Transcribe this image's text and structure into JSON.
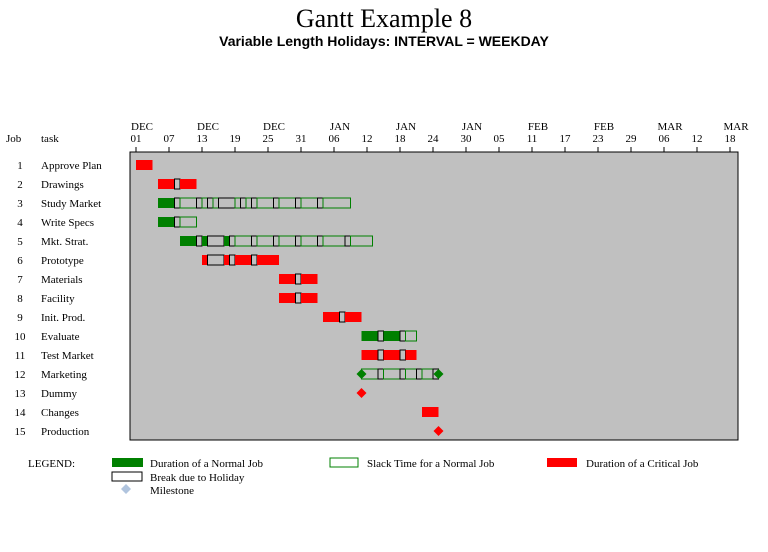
{
  "chart_data": {
    "type": "gantt",
    "title": "Gantt Example 8",
    "subtitle": "Variable Length Holidays: INTERVAL = WEEKDAY",
    "column_headers": {
      "job": "Job",
      "task": "task"
    },
    "axis": {
      "start": "2003-12-01",
      "end": "2004-03-19",
      "ticks": [
        {
          "month": "DEC",
          "day": "01",
          "date": "2003-12-01"
        },
        {
          "month": "",
          "day": "07",
          "date": "2003-12-07"
        },
        {
          "month": "DEC",
          "day": "13",
          "date": "2003-12-13"
        },
        {
          "month": "",
          "day": "19",
          "date": "2003-12-19"
        },
        {
          "month": "DEC",
          "day": "25",
          "date": "2003-12-25"
        },
        {
          "month": "",
          "day": "31",
          "date": "2003-12-31"
        },
        {
          "month": "JAN",
          "day": "06",
          "date": "2004-01-06"
        },
        {
          "month": "",
          "day": "12",
          "date": "2004-01-12"
        },
        {
          "month": "JAN",
          "day": "18",
          "date": "2004-01-18"
        },
        {
          "month": "",
          "day": "24",
          "date": "2004-01-24"
        },
        {
          "month": "JAN",
          "day": "30",
          "date": "2004-01-30"
        },
        {
          "month": "",
          "day": "05",
          "date": "2004-02-05"
        },
        {
          "month": "FEB",
          "day": "11",
          "date": "2004-02-11"
        },
        {
          "month": "",
          "day": "17",
          "date": "2004-02-17"
        },
        {
          "month": "FEB",
          "day": "23",
          "date": "2004-02-23"
        },
        {
          "month": "",
          "day": "29",
          "date": "2004-02-29"
        },
        {
          "month": "MAR",
          "day": "06",
          "date": "2004-03-06"
        },
        {
          "month": "",
          "day": "12",
          "date": "2004-03-12"
        },
        {
          "month": "MAR",
          "day": "18",
          "date": "2004-03-18"
        }
      ]
    },
    "jobs": [
      {
        "job": "1",
        "task": "Approve Plan",
        "segments": [
          {
            "type": "critical",
            "start": "2003-12-01",
            "end": "2003-12-04"
          }
        ]
      },
      {
        "job": "2",
        "task": "Drawings",
        "segments": [
          {
            "type": "critical",
            "start": "2003-12-05",
            "end": "2003-12-08"
          },
          {
            "type": "holiday",
            "start": "2003-12-08",
            "end": "2003-12-09"
          },
          {
            "type": "critical",
            "start": "2003-12-09",
            "end": "2003-12-12"
          }
        ]
      },
      {
        "job": "3",
        "task": "Study Market",
        "segments": [
          {
            "type": "normal",
            "start": "2003-12-05",
            "end": "2003-12-08"
          },
          {
            "type": "holiday",
            "start": "2003-12-08",
            "end": "2003-12-09"
          },
          {
            "type": "slack",
            "start": "2003-12-09",
            "end": "2003-12-12"
          },
          {
            "type": "holiday",
            "start": "2003-12-12",
            "end": "2003-12-13"
          },
          {
            "type": "slack",
            "start": "2003-12-13",
            "end": "2003-12-14"
          },
          {
            "type": "holiday",
            "start": "2003-12-14",
            "end": "2003-12-15"
          },
          {
            "type": "slack",
            "start": "2003-12-15",
            "end": "2003-12-16"
          },
          {
            "type": "holiday",
            "start": "2003-12-16",
            "end": "2003-12-19"
          },
          {
            "type": "slack",
            "start": "2003-12-19",
            "end": "2003-12-20"
          },
          {
            "type": "holiday",
            "start": "2003-12-20",
            "end": "2003-12-21"
          },
          {
            "type": "slack",
            "start": "2003-12-21",
            "end": "2003-12-22"
          },
          {
            "type": "holiday",
            "start": "2003-12-22",
            "end": "2003-12-23"
          },
          {
            "type": "slack",
            "start": "2003-12-23",
            "end": "2003-12-26"
          },
          {
            "type": "holiday",
            "start": "2003-12-26",
            "end": "2003-12-27"
          },
          {
            "type": "slack",
            "start": "2003-12-27",
            "end": "2003-12-30"
          },
          {
            "type": "holiday",
            "start": "2003-12-30",
            "end": "2003-12-31"
          },
          {
            "type": "slack",
            "start": "2003-12-31",
            "end": "2004-01-03"
          },
          {
            "type": "holiday",
            "start": "2004-01-03",
            "end": "2004-01-04"
          },
          {
            "type": "slack",
            "start": "2004-01-04",
            "end": "2004-01-09"
          }
        ]
      },
      {
        "job": "4",
        "task": "Write Specs",
        "segments": [
          {
            "type": "normal",
            "start": "2003-12-05",
            "end": "2003-12-08"
          },
          {
            "type": "holiday",
            "start": "2003-12-08",
            "end": "2003-12-09"
          },
          {
            "type": "slack",
            "start": "2003-12-09",
            "end": "2003-12-12"
          }
        ]
      },
      {
        "job": "5",
        "task": "Mkt. Strat.",
        "segments": [
          {
            "type": "normal",
            "start": "2003-12-09",
            "end": "2003-12-12"
          },
          {
            "type": "holiday",
            "start": "2003-12-12",
            "end": "2003-12-13"
          },
          {
            "type": "normal",
            "start": "2003-12-13",
            "end": "2003-12-14"
          },
          {
            "type": "holiday",
            "start": "2003-12-14",
            "end": "2003-12-17"
          },
          {
            "type": "normal",
            "start": "2003-12-17",
            "end": "2003-12-18"
          },
          {
            "type": "holiday",
            "start": "2003-12-18",
            "end": "2003-12-19"
          },
          {
            "type": "slack",
            "start": "2003-12-19",
            "end": "2003-12-22"
          },
          {
            "type": "holiday",
            "start": "2003-12-22",
            "end": "2003-12-23"
          },
          {
            "type": "slack",
            "start": "2003-12-23",
            "end": "2003-12-26"
          },
          {
            "type": "holiday",
            "start": "2003-12-26",
            "end": "2003-12-27"
          },
          {
            "type": "slack",
            "start": "2003-12-27",
            "end": "2003-12-30"
          },
          {
            "type": "holiday",
            "start": "2003-12-30",
            "end": "2003-12-31"
          },
          {
            "type": "slack",
            "start": "2003-12-31",
            "end": "2004-01-03"
          },
          {
            "type": "holiday",
            "start": "2004-01-03",
            "end": "2004-01-04"
          },
          {
            "type": "slack",
            "start": "2004-01-04",
            "end": "2004-01-08"
          },
          {
            "type": "holiday",
            "start": "2004-01-08",
            "end": "2004-01-09"
          },
          {
            "type": "slack",
            "start": "2004-01-09",
            "end": "2004-01-13"
          }
        ]
      },
      {
        "job": "6",
        "task": "Prototype",
        "segments": [
          {
            "type": "critical",
            "start": "2003-12-13",
            "end": "2003-12-14"
          },
          {
            "type": "holiday",
            "start": "2003-12-14",
            "end": "2003-12-17"
          },
          {
            "type": "critical",
            "start": "2003-12-17",
            "end": "2003-12-18"
          },
          {
            "type": "holiday",
            "start": "2003-12-18",
            "end": "2003-12-19"
          },
          {
            "type": "critical",
            "start": "2003-12-19",
            "end": "2003-12-22"
          },
          {
            "type": "holiday",
            "start": "2003-12-22",
            "end": "2003-12-23"
          },
          {
            "type": "critical",
            "start": "2003-12-23",
            "end": "2003-12-27"
          }
        ]
      },
      {
        "job": "7",
        "task": "Materials",
        "segments": [
          {
            "type": "critical",
            "start": "2003-12-27",
            "end": "2003-12-30"
          },
          {
            "type": "holiday",
            "start": "2003-12-30",
            "end": "2003-12-31"
          },
          {
            "type": "critical",
            "start": "2003-12-31",
            "end": "2004-01-03"
          }
        ]
      },
      {
        "job": "8",
        "task": "Facility",
        "segments": [
          {
            "type": "critical",
            "start": "2003-12-27",
            "end": "2003-12-30"
          },
          {
            "type": "holiday",
            "start": "2003-12-30",
            "end": "2003-12-31"
          },
          {
            "type": "critical",
            "start": "2003-12-31",
            "end": "2004-01-03"
          }
        ]
      },
      {
        "job": "9",
        "task": "Init. Prod.",
        "segments": [
          {
            "type": "critical",
            "start": "2004-01-04",
            "end": "2004-01-07"
          },
          {
            "type": "holiday",
            "start": "2004-01-07",
            "end": "2004-01-08"
          },
          {
            "type": "critical",
            "start": "2004-01-08",
            "end": "2004-01-11"
          }
        ]
      },
      {
        "job": "10",
        "task": "Evaluate",
        "segments": [
          {
            "type": "normal",
            "start": "2004-01-11",
            "end": "2004-01-14"
          },
          {
            "type": "holiday",
            "start": "2004-01-14",
            "end": "2004-01-15"
          },
          {
            "type": "normal",
            "start": "2004-01-15",
            "end": "2004-01-18"
          },
          {
            "type": "holiday",
            "start": "2004-01-18",
            "end": "2004-01-19"
          },
          {
            "type": "slack",
            "start": "2004-01-19",
            "end": "2004-01-21"
          }
        ]
      },
      {
        "job": "11",
        "task": "Test Market",
        "segments": [
          {
            "type": "critical",
            "start": "2004-01-11",
            "end": "2004-01-14"
          },
          {
            "type": "holiday",
            "start": "2004-01-14",
            "end": "2004-01-15"
          },
          {
            "type": "critical",
            "start": "2004-01-15",
            "end": "2004-01-18"
          },
          {
            "type": "holiday",
            "start": "2004-01-18",
            "end": "2004-01-19"
          },
          {
            "type": "critical",
            "start": "2004-01-19",
            "end": "2004-01-21"
          }
        ]
      },
      {
        "job": "12",
        "task": "Marketing",
        "milestones": [
          {
            "type": "normal",
            "date": "2004-01-11"
          },
          {
            "type": "normal",
            "date": "2004-01-25"
          }
        ],
        "segments": [
          {
            "type": "slack",
            "start": "2004-01-11",
            "end": "2004-01-14"
          },
          {
            "type": "holiday",
            "start": "2004-01-14",
            "end": "2004-01-15"
          },
          {
            "type": "slack",
            "start": "2004-01-15",
            "end": "2004-01-18"
          },
          {
            "type": "holiday",
            "start": "2004-01-18",
            "end": "2004-01-19"
          },
          {
            "type": "slack",
            "start": "2004-01-19",
            "end": "2004-01-21"
          },
          {
            "type": "holiday",
            "start": "2004-01-21",
            "end": "2004-01-22"
          },
          {
            "type": "slack",
            "start": "2004-01-22",
            "end": "2004-01-24"
          },
          {
            "type": "holiday",
            "start": "2004-01-24",
            "end": "2004-01-25"
          }
        ]
      },
      {
        "job": "13",
        "task": "Dummy",
        "milestones": [
          {
            "type": "critical",
            "date": "2004-01-11"
          }
        ]
      },
      {
        "job": "14",
        "task": "Changes",
        "segments": [
          {
            "type": "critical",
            "start": "2004-01-22",
            "end": "2004-01-25"
          }
        ]
      },
      {
        "job": "15",
        "task": "Production",
        "milestones": [
          {
            "type": "critical",
            "date": "2004-01-25"
          }
        ]
      }
    ],
    "legend": {
      "title": "LEGEND:",
      "items": [
        {
          "kind": "normal",
          "label": "Duration of a Normal Job"
        },
        {
          "kind": "slack",
          "label": "Slack Time for a Normal Job"
        },
        {
          "kind": "critical",
          "label": "Duration of a Critical Job"
        },
        {
          "kind": "holiday",
          "label": "Break due to Holiday"
        },
        {
          "kind": "milestone",
          "label": "Milestone"
        }
      ]
    },
    "colors": {
      "plot_background": "#c0c0c0",
      "normal": "#008000",
      "slack_outline": "#008000",
      "critical": "#ff0000",
      "holiday": "#c0c0c0",
      "milestone_legend": "#b0c4de"
    }
  }
}
